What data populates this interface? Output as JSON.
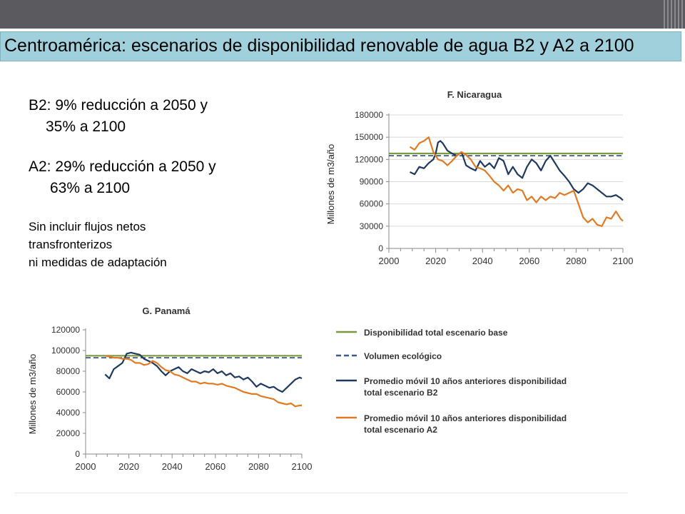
{
  "slide": {
    "title": "Centroamérica: escenarios de disponibilidad renovable de agua B2 y A2 a 2100",
    "notes": {
      "b2_line1": "B2:  9% reducción a 2050 y",
      "b2_line2": "35% a 2100",
      "a2_line1": "A2: 29% reducción a 2050 y",
      "a2_line2": "63% a 2100",
      "extra_line1": "Sin incluir flujos netos",
      "extra_line2": "transfronterizos",
      "extra_line3": "ni medidas de adaptación"
    }
  },
  "legend": [
    {
      "label": "Disponibilidad  total escenario base",
      "color": "#7a9a3c",
      "style": "solid"
    },
    {
      "label": "Volumen ecológico",
      "color": "#3b5a86",
      "style": "dashed"
    },
    {
      "label_lines": [
        "Promedio móvil 10 años anteriores disponibilidad",
        "total escenario B2"
      ],
      "color": "#1f3a5f",
      "style": "solid"
    },
    {
      "label_lines": [
        "Promedio móvil 10 años anteriores disponibilidad",
        "total escenario A2"
      ],
      "color": "#e07b24",
      "style": "solid"
    }
  ],
  "chart_data": [
    {
      "type": "line",
      "title": "F. Nicaragua",
      "ylabel": "Millones de m3/año",
      "xlim": [
        2000,
        2100
      ],
      "ylim": [
        0,
        180000
      ],
      "xticks": [
        2000,
        2020,
        2040,
        2060,
        2080,
        2100
      ],
      "yticks": [
        0,
        30000,
        60000,
        90000,
        120000,
        150000,
        180000
      ],
      "ytick_labels": [
        "0",
        "30000",
        "60000",
        "90000",
        "120000",
        "150000",
        "180000"
      ],
      "grid": "horizontal",
      "series": [
        {
          "role": "base",
          "color": "#7a9a3c",
          "dashed": false,
          "x": [
            2000,
            2100
          ],
          "y": [
            128000,
            128000
          ]
        },
        {
          "role": "ecologico",
          "color": "#3b5a86",
          "dashed": true,
          "x": [
            2000,
            2100
          ],
          "y": [
            125000,
            125000
          ]
        },
        {
          "role": "B2",
          "color": "#1f3a5f",
          "dashed": false,
          "x": [
            2009,
            2011,
            2013,
            2015,
            2017,
            2019,
            2020,
            2021,
            2022,
            2023,
            2025,
            2027,
            2029,
            2031,
            2033,
            2035,
            2037,
            2039,
            2041,
            2043,
            2045,
            2047,
            2049,
            2051,
            2053,
            2055,
            2057,
            2059,
            2061,
            2063,
            2065,
            2067,
            2069,
            2071,
            2073,
            2075,
            2077,
            2079,
            2081,
            2083,
            2085,
            2087,
            2089,
            2091,
            2093,
            2095,
            2097,
            2099,
            2100
          ],
          "y": [
            103000,
            100000,
            110000,
            108000,
            115000,
            120000,
            128000,
            143000,
            145000,
            142000,
            132000,
            128000,
            125000,
            130000,
            112000,
            108000,
            105000,
            118000,
            110000,
            115000,
            108000,
            122000,
            118000,
            100000,
            110000,
            100000,
            95000,
            110000,
            120000,
            115000,
            105000,
            118000,
            125000,
            115000,
            105000,
            98000,
            90000,
            80000,
            75000,
            80000,
            88000,
            85000,
            80000,
            75000,
            70000,
            70000,
            72000,
            68000,
            65000
          ]
        },
        {
          "role": "A2",
          "color": "#e07b24",
          "dashed": false,
          "x": [
            2009,
            2011,
            2013,
            2015,
            2017,
            2019,
            2021,
            2023,
            2025,
            2027,
            2029,
            2031,
            2033,
            2035,
            2037,
            2039,
            2041,
            2043,
            2045,
            2047,
            2049,
            2051,
            2053,
            2055,
            2057,
            2059,
            2061,
            2063,
            2065,
            2067,
            2069,
            2071,
            2073,
            2075,
            2077,
            2079,
            2081,
            2083,
            2085,
            2087,
            2089,
            2091,
            2093,
            2095,
            2097,
            2099,
            2100
          ],
          "y": [
            137000,
            133000,
            142000,
            145000,
            150000,
            130000,
            120000,
            118000,
            112000,
            118000,
            125000,
            130000,
            126000,
            120000,
            110000,
            108000,
            105000,
            98000,
            90000,
            85000,
            78000,
            85000,
            75000,
            80000,
            78000,
            65000,
            70000,
            62000,
            70000,
            65000,
            70000,
            68000,
            75000,
            72000,
            75000,
            78000,
            60000,
            42000,
            35000,
            40000,
            32000,
            30000,
            42000,
            40000,
            50000,
            40000,
            37000
          ]
        }
      ]
    },
    {
      "type": "line",
      "title": "G. Panamá",
      "ylabel": "Millones de m3/año",
      "xlim": [
        2000,
        2100
      ],
      "ylim": [
        0,
        120000
      ],
      "xticks": [
        2000,
        2020,
        2040,
        2060,
        2080,
        2100
      ],
      "yticks": [
        0,
        20000,
        40000,
        60000,
        80000,
        100000,
        120000
      ],
      "ytick_labels": [
        "0",
        "20000",
        "40000",
        "60000",
        "80000",
        "100000",
        "120000"
      ],
      "grid": "none",
      "series": [
        {
          "role": "base",
          "color": "#7a9a3c",
          "dashed": false,
          "x": [
            2000,
            2100
          ],
          "y": [
            95000,
            95000
          ]
        },
        {
          "role": "ecologico",
          "color": "#3b5a86",
          "dashed": true,
          "x": [
            2000,
            2100
          ],
          "y": [
            93000,
            93000
          ]
        },
        {
          "role": "B2",
          "color": "#1f3a5f",
          "dashed": false,
          "x": [
            2009,
            2011,
            2013,
            2015,
            2017,
            2019,
            2021,
            2023,
            2025,
            2027,
            2029,
            2031,
            2033,
            2035,
            2037,
            2039,
            2041,
            2043,
            2045,
            2047,
            2049,
            2051,
            2053,
            2055,
            2057,
            2059,
            2061,
            2063,
            2065,
            2067,
            2069,
            2071,
            2073,
            2075,
            2077,
            2079,
            2081,
            2083,
            2085,
            2087,
            2089,
            2091,
            2093,
            2095,
            2097,
            2099,
            2100
          ],
          "y": [
            77000,
            73000,
            82000,
            85000,
            88000,
            97000,
            98000,
            97000,
            96000,
            92000,
            90000,
            88000,
            85000,
            80000,
            76000,
            80000,
            82000,
            84000,
            80000,
            78000,
            82000,
            80000,
            78000,
            80000,
            79000,
            82000,
            78000,
            80000,
            76000,
            78000,
            74000,
            75000,
            72000,
            74000,
            70000,
            65000,
            68000,
            66000,
            64000,
            65000,
            62000,
            60000,
            64000,
            68000,
            72000,
            74000,
            73000
          ]
        },
        {
          "role": "A2",
          "color": "#e07b24",
          "dashed": false,
          "x": [
            2009,
            2011,
            2013,
            2015,
            2017,
            2019,
            2021,
            2023,
            2025,
            2027,
            2029,
            2031,
            2033,
            2035,
            2037,
            2039,
            2041,
            2043,
            2045,
            2047,
            2049,
            2051,
            2053,
            2055,
            2057,
            2059,
            2061,
            2063,
            2065,
            2067,
            2069,
            2071,
            2073,
            2075,
            2077,
            2079,
            2081,
            2083,
            2085,
            2087,
            2089,
            2091,
            2093,
            2095,
            2097,
            2099,
            2100
          ],
          "y": [
            95000,
            94000,
            93000,
            93000,
            92000,
            92000,
            91000,
            88000,
            88000,
            86000,
            87000,
            90000,
            88000,
            84000,
            81000,
            80000,
            77000,
            76000,
            74000,
            72000,
            70000,
            70000,
            68000,
            69000,
            68000,
            68000,
            67000,
            68000,
            66000,
            65000,
            64000,
            62000,
            60000,
            59000,
            58000,
            58000,
            56000,
            55000,
            54000,
            53000,
            50000,
            49000,
            48000,
            49000,
            46000,
            47000,
            47000
          ]
        }
      ]
    }
  ]
}
